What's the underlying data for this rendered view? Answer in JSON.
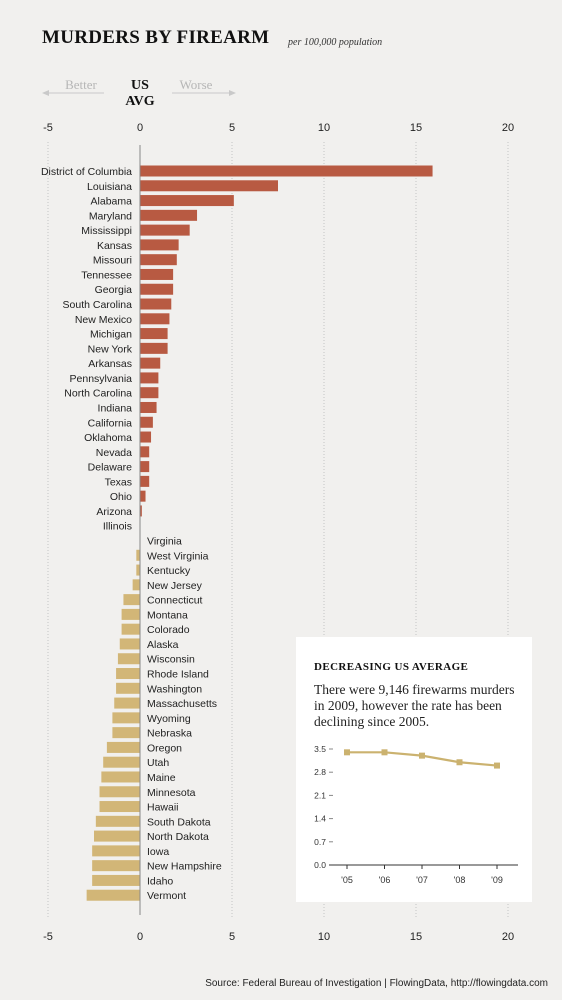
{
  "title": "MURDERS BY FIREARM",
  "subtitle": "per 100,000 population",
  "header": {
    "better_label": "Better",
    "worse_label": "Worse",
    "center_label_line1": "US",
    "center_label_line2": "AVG"
  },
  "source": "Source: Federal Bureau of Investigation | FlowingData, http://flowingdata.com",
  "colors": {
    "above_avg": "#b85a42",
    "below_avg": "#d2b677",
    "background": "#f1f0ee",
    "inset_line": "#cbb26f"
  },
  "chart_data": [
    {
      "type": "bar",
      "orientation": "horizontal",
      "xlim": [
        -5,
        20
      ],
      "xticks": [
        -5,
        0,
        5,
        10,
        15,
        20
      ],
      "grid": true,
      "categories": [
        "District of Columbia",
        "Louisiana",
        "Alabama",
        "Maryland",
        "Mississippi",
        "Kansas",
        "Missouri",
        "Tennessee",
        "Georgia",
        "South Carolina",
        "New Mexico",
        "Michigan",
        "New York",
        "Arkansas",
        "Pennsylvania",
        "North Carolina",
        "Indiana",
        "California",
        "Oklahoma",
        "Nevada",
        "Delaware",
        "Texas",
        "Ohio",
        "Arizona",
        "Illinois",
        "Virginia",
        "West Virginia",
        "Kentucky",
        "New Jersey",
        "Connecticut",
        "Montana",
        "Colorado",
        "Alaska",
        "Wisconsin",
        "Rhode Island",
        "Washington",
        "Massachusetts",
        "Wyoming",
        "Nebraska",
        "Oregon",
        "Utah",
        "Maine",
        "Minnesota",
        "Hawaii",
        "South Dakota",
        "North Dakota",
        "Iowa",
        "New Hampshire",
        "Idaho",
        "Vermont"
      ],
      "values": [
        15.9,
        7.5,
        5.1,
        3.1,
        2.7,
        2.1,
        2.0,
        1.8,
        1.8,
        1.7,
        1.6,
        1.5,
        1.5,
        1.1,
        1.0,
        1.0,
        0.9,
        0.7,
        0.6,
        0.5,
        0.5,
        0.5,
        0.3,
        0.1,
        0.0,
        0.0,
        -0.2,
        -0.2,
        -0.4,
        -0.9,
        -1.0,
        -1.0,
        -1.1,
        -1.2,
        -1.3,
        -1.3,
        -1.4,
        -1.5,
        -1.5,
        -1.8,
        -2.0,
        -2.1,
        -2.2,
        -2.2,
        -2.4,
        -2.5,
        -2.6,
        -2.6,
        -2.6,
        -2.9
      ]
    },
    {
      "type": "line",
      "title": "DECREASING US AVERAGE",
      "description": "There were 9,146 firewarms murders in 2009, however the rate has been declining since 2005.",
      "x": [
        "'05",
        "'06",
        "'07",
        "'08",
        "'09"
      ],
      "values": [
        3.4,
        3.4,
        3.3,
        3.1,
        3.0
      ],
      "ylim": [
        0,
        3.5
      ],
      "yticks": [
        "0.0",
        "0.7",
        "1.4",
        "2.1",
        "2.8",
        "3.5"
      ]
    }
  ]
}
